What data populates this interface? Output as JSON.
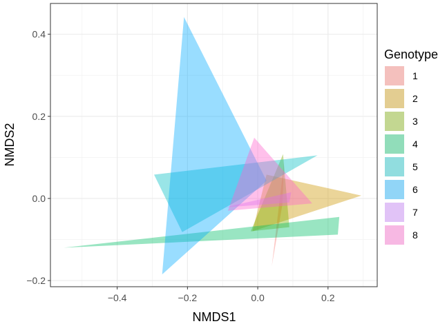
{
  "chart_data": {
    "type": "polygon",
    "xlabel": "NMDS1",
    "ylabel": "NMDS2",
    "xlim": [
      -0.59,
      0.34
    ],
    "ylim": [
      -0.215,
      0.475
    ],
    "x_ticks": [
      -0.4,
      -0.2,
      0.0,
      0.2
    ],
    "x_tick_labels": [
      "−0.4",
      "−0.2",
      "0.0",
      "0.2"
    ],
    "y_ticks": [
      -0.2,
      0.0,
      0.2,
      0.4
    ],
    "y_tick_labels": [
      "−0.2",
      "0.0",
      "0.2",
      "0.4"
    ],
    "grid": true,
    "legend_title": "Genotype",
    "legend_position": "right",
    "series": [
      {
        "name": "1",
        "color": "#F8766D",
        "points": [
          [
            0.075,
            0.088
          ],
          [
            0.04,
            -0.165
          ],
          [
            0.07,
            -0.015
          ]
        ]
      },
      {
        "name": "2",
        "color": "#CD9600",
        "points": [
          [
            0.295,
            0.007
          ],
          [
            -0.015,
            -0.08
          ],
          [
            0.025,
            0.058
          ]
        ]
      },
      {
        "name": "3",
        "color": "#7CAE00",
        "points": [
          [
            0.072,
            0.108
          ],
          [
            -0.02,
            -0.08
          ],
          [
            0.09,
            -0.07
          ]
        ]
      },
      {
        "name": "4",
        "color": "#00BE67",
        "points": [
          [
            -0.552,
            -0.12
          ],
          [
            0.232,
            -0.045
          ],
          [
            0.228,
            -0.088
          ]
        ]
      },
      {
        "name": "5",
        "color": "#00BFC4",
        "points": [
          [
            -0.295,
            0.058
          ],
          [
            0.17,
            0.105
          ],
          [
            -0.215,
            -0.082
          ]
        ]
      },
      {
        "name": "6",
        "color": "#00A9FF",
        "points": [
          [
            -0.21,
            0.442
          ],
          [
            -0.272,
            -0.185
          ],
          [
            0.025,
            0.043
          ]
        ]
      },
      {
        "name": "7",
        "color": "#C77CFF",
        "points": [
          [
            -0.095,
            -0.022
          ],
          [
            0.09,
            -0.01
          ],
          [
            0.095,
            0.015
          ]
        ]
      },
      {
        "name": "8",
        "color": "#FF61CC",
        "points": [
          [
            -0.01,
            0.148
          ],
          [
            0.155,
            -0.012
          ],
          [
            -0.085,
            -0.03
          ]
        ]
      }
    ]
  }
}
